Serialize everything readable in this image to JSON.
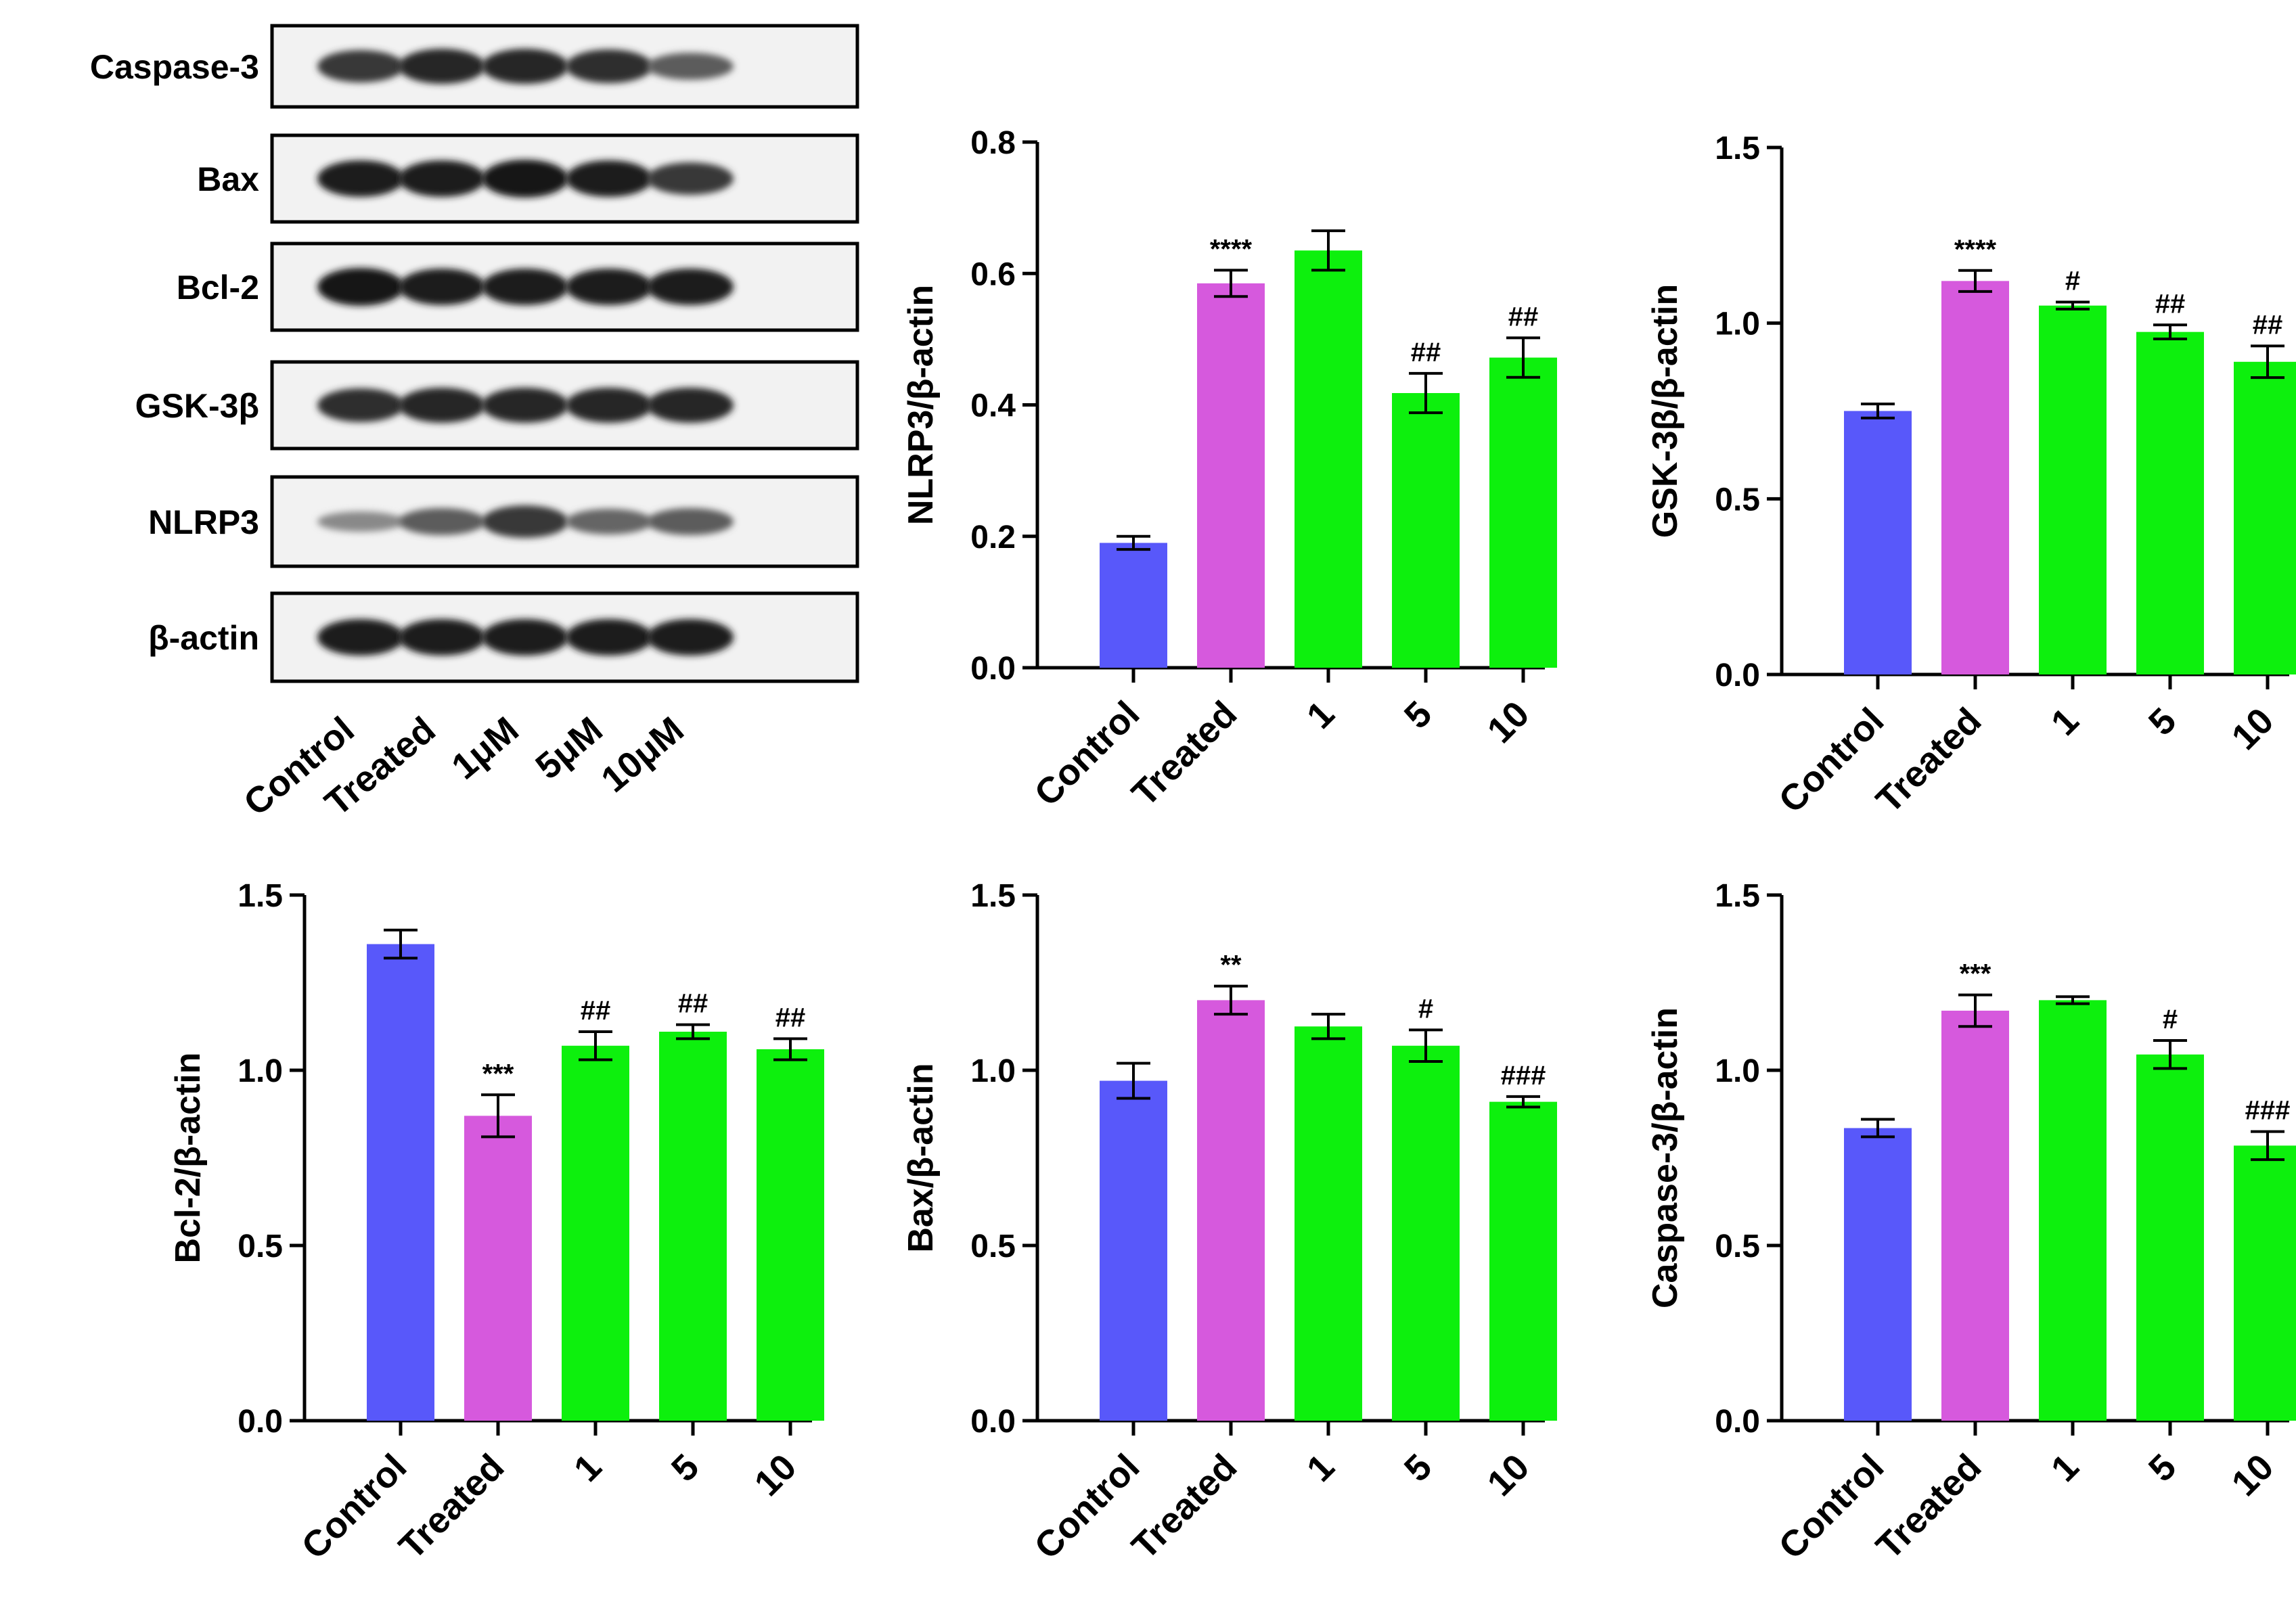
{
  "blot": {
    "lane_labels": [
      "Control",
      "Treated",
      "1μM",
      "5μM",
      "10μM"
    ],
    "proteins": [
      {
        "label": "Caspase-3",
        "intensity": [
          0.8,
          0.9,
          0.9,
          0.85,
          0.6
        ]
      },
      {
        "label": "Bax",
        "intensity": [
          0.95,
          0.95,
          1.0,
          0.95,
          0.8
        ]
      },
      {
        "label": "Bcl-2",
        "intensity": [
          1.0,
          0.95,
          0.95,
          0.95,
          0.95
        ]
      },
      {
        "label": "GSK-3β",
        "intensity": [
          0.85,
          0.9,
          0.9,
          0.9,
          0.9
        ]
      },
      {
        "label": "NLRP3",
        "intensity": [
          0.35,
          0.6,
          0.8,
          0.55,
          0.6
        ]
      },
      {
        "label": "β-actin",
        "intensity": [
          0.95,
          0.95,
          0.95,
          0.95,
          0.95
        ]
      }
    ]
  },
  "colors": {
    "control": "#5858fa",
    "treated": "#d659dd",
    "dose": "#0df00d"
  },
  "chart_data": [
    {
      "type": "bar",
      "categories": [
        "Control",
        "Treated",
        "1",
        "5",
        "10"
      ],
      "values": [
        0.19,
        0.585,
        0.635,
        0.418,
        0.472
      ],
      "errors": [
        0.01,
        0.02,
        0.03,
        0.03,
        0.03
      ],
      "annotations": [
        "",
        "****",
        "",
        "##",
        "##"
      ],
      "ylabel": "NLRP3/β-actin",
      "ylim": [
        0,
        0.8
      ],
      "yticks": [
        "0.0",
        "0.2",
        "0.4",
        "0.6",
        "0.8"
      ]
    },
    {
      "type": "bar",
      "categories": [
        "Control",
        "Treated",
        "1",
        "5",
        "10"
      ],
      "values": [
        0.75,
        1.12,
        1.05,
        0.975,
        0.89
      ],
      "errors": [
        0.02,
        0.03,
        0.01,
        0.02,
        0.045
      ],
      "annotations": [
        "",
        "****",
        "#",
        "##",
        "##"
      ],
      "ylabel": "GSK-3β/β-actin",
      "ylim": [
        0,
        1.5
      ],
      "yticks": [
        "0.0",
        "0.5",
        "1.0",
        "1.5"
      ]
    },
    {
      "type": "bar",
      "categories": [
        "Control",
        "Treated",
        "1",
        "5",
        "10"
      ],
      "values": [
        1.36,
        0.87,
        1.07,
        1.11,
        1.06
      ],
      "errors": [
        0.04,
        0.06,
        0.04,
        0.02,
        0.03
      ],
      "annotations": [
        "",
        "***",
        "##",
        "##",
        "##"
      ],
      "ylabel": "Bcl-2/β-actin",
      "ylim": [
        0,
        1.5
      ],
      "yticks": [
        "0.0",
        "0.5",
        "1.0",
        "1.5"
      ]
    },
    {
      "type": "bar",
      "categories": [
        "Control",
        "Treated",
        "1",
        "5",
        "10"
      ],
      "values": [
        0.97,
        1.2,
        1.125,
        1.07,
        0.91
      ],
      "errors": [
        0.05,
        0.04,
        0.035,
        0.045,
        0.015
      ],
      "annotations": [
        "",
        "**",
        "",
        "#",
        "###"
      ],
      "ylabel": "Bax/β-actin",
      "ylim": [
        0,
        1.5
      ],
      "yticks": [
        "0.0",
        "0.5",
        "1.0",
        "1.5"
      ]
    },
    {
      "type": "bar",
      "categories": [
        "Control",
        "Treated",
        "1",
        "5",
        "10"
      ],
      "values": [
        0.835,
        1.17,
        1.2,
        1.045,
        0.785
      ],
      "errors": [
        0.025,
        0.045,
        0.01,
        0.04,
        0.04
      ],
      "annotations": [
        "",
        "***",
        "",
        "#",
        "###"
      ],
      "ylabel": "Caspase-3/β-actin",
      "ylim": [
        0,
        1.5
      ],
      "yticks": [
        "0.0",
        "0.5",
        "1.0",
        "1.5"
      ]
    }
  ]
}
